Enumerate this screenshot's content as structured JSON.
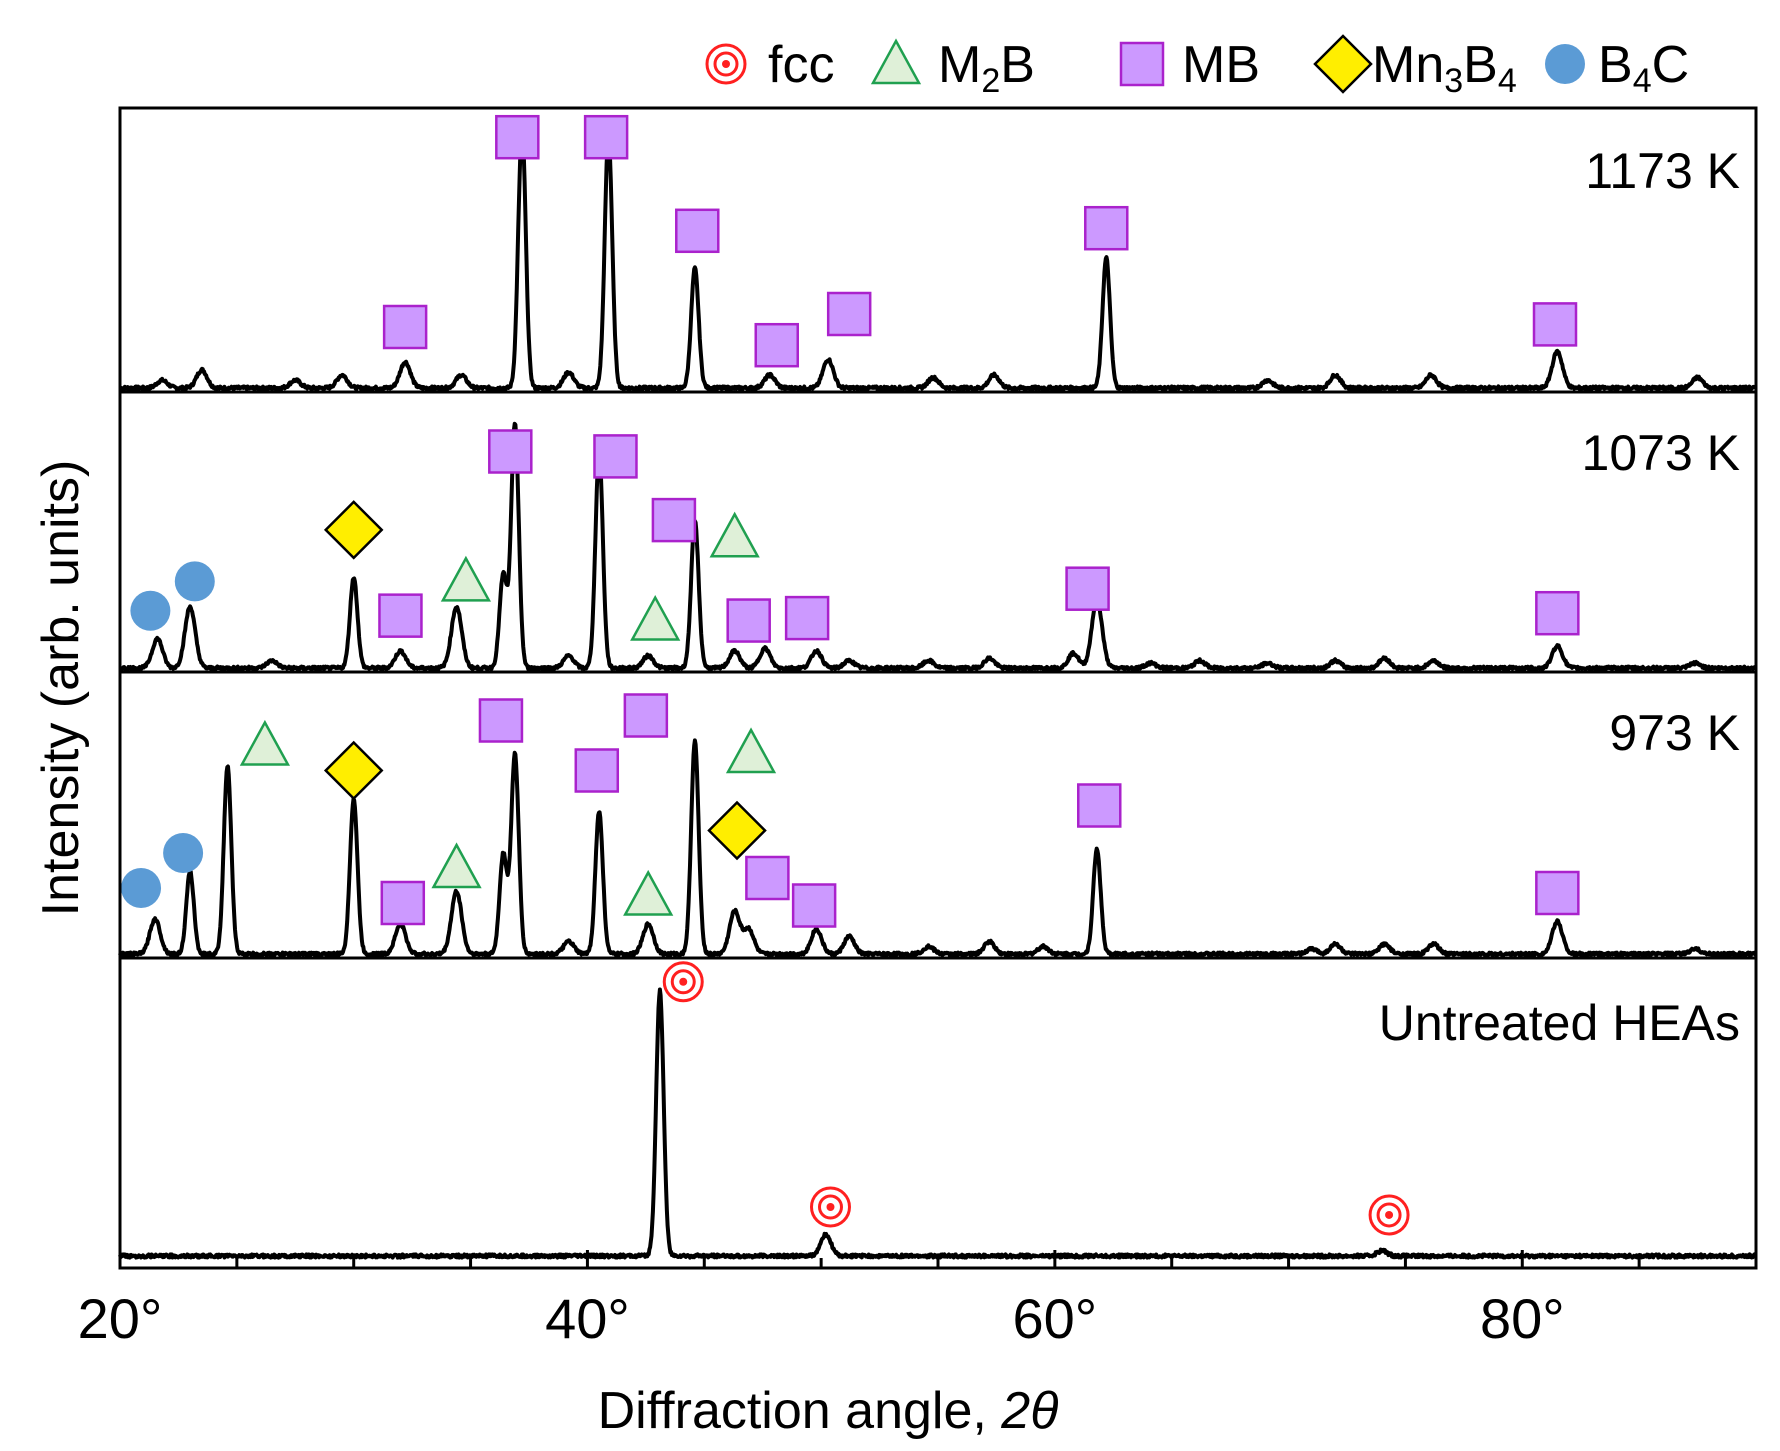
{
  "chart_data": {
    "type": "line",
    "title": "",
    "xlabel_main": "Diffraction angle, ",
    "xlabel_var": "2θ",
    "ylabel": "Intensity (arb. units)",
    "xlim": [
      20,
      90
    ],
    "x_ticks": [
      {
        "value": 20,
        "label": "20°"
      },
      {
        "value": 40,
        "label": "40°"
      },
      {
        "value": 60,
        "label": "60°"
      },
      {
        "value": 80,
        "label": "80°"
      }
    ],
    "grid": false,
    "legend_position": "top-right",
    "legend": [
      {
        "symbol": "fcc",
        "label": "fcc",
        "sub": "",
        "post": ""
      },
      {
        "symbol": "m2b",
        "label": "M",
        "sub": "2",
        "post": "B"
      },
      {
        "symbol": "mb",
        "label": "MB",
        "sub": "",
        "post": ""
      },
      {
        "symbol": "mn3b4",
        "label": "Mn",
        "sub": "3",
        "post": "B",
        "sub2": "4"
      },
      {
        "symbol": "b4c",
        "label": "B",
        "sub": "4",
        "post": "C"
      }
    ],
    "colors": {
      "fcc": "#ff2020",
      "m2b_stroke": "#20a050",
      "m2b_fill": "#dff0d8",
      "mb_fill": "#cc99ff",
      "mb_stroke": "#aa22cc",
      "mn3b4_fill": "#ffee00",
      "b4c_fill": "#5b9bd5",
      "line": "#000000"
    },
    "series": [
      {
        "name": "1173 K",
        "peaks": [
          [
            21.8,
            0.03
          ],
          [
            23.5,
            0.07
          ],
          [
            27.5,
            0.03
          ],
          [
            29.5,
            0.05
          ],
          [
            32.2,
            0.1
          ],
          [
            34.6,
            0.05
          ],
          [
            37.2,
            1.0
          ],
          [
            39.2,
            0.06
          ],
          [
            40.9,
            0.97
          ],
          [
            44.6,
            0.46
          ],
          [
            47.8,
            0.05
          ],
          [
            50.3,
            0.11
          ],
          [
            54.8,
            0.04
          ],
          [
            57.4,
            0.05
          ],
          [
            62.2,
            0.5
          ],
          [
            69.1,
            0.03
          ],
          [
            72.0,
            0.05
          ],
          [
            76.1,
            0.05
          ],
          [
            81.5,
            0.14
          ],
          [
            87.5,
            0.04
          ]
        ],
        "markers": [
          {
            "type": "mb",
            "x": 32.2,
            "y": 0.25
          },
          {
            "type": "mb",
            "x": 37.0,
            "y": 0.98
          },
          {
            "type": "mb",
            "x": 40.8,
            "y": 0.98
          },
          {
            "type": "mb",
            "x": 44.7,
            "y": 0.62
          },
          {
            "type": "mb",
            "x": 48.1,
            "y": 0.18
          },
          {
            "type": "mb",
            "x": 51.2,
            "y": 0.3
          },
          {
            "type": "mb",
            "x": 62.2,
            "y": 0.63
          },
          {
            "type": "mb",
            "x": 81.4,
            "y": 0.26
          }
        ]
      },
      {
        "name": "1073 K",
        "peaks": [
          [
            21.6,
            0.12
          ],
          [
            23.0,
            0.25
          ],
          [
            26.5,
            0.03
          ],
          [
            30.0,
            0.37
          ],
          [
            32.0,
            0.07
          ],
          [
            34.4,
            0.25
          ],
          [
            36.4,
            0.38
          ],
          [
            36.9,
            1.0
          ],
          [
            39.2,
            0.05
          ],
          [
            40.5,
            0.88
          ],
          [
            42.6,
            0.05
          ],
          [
            44.6,
            0.6
          ],
          [
            46.3,
            0.07
          ],
          [
            47.6,
            0.08
          ],
          [
            49.8,
            0.07
          ],
          [
            51.2,
            0.03
          ],
          [
            54.6,
            0.03
          ],
          [
            57.2,
            0.04
          ],
          [
            60.8,
            0.06
          ],
          [
            61.8,
            0.28
          ],
          [
            64.1,
            0.02
          ],
          [
            66.2,
            0.03
          ],
          [
            69.1,
            0.02
          ],
          [
            72.0,
            0.03
          ],
          [
            74.1,
            0.04
          ],
          [
            76.2,
            0.03
          ],
          [
            81.5,
            0.09
          ],
          [
            87.4,
            0.02
          ]
        ],
        "markers": [
          {
            "type": "b4c",
            "x": 21.3,
            "y": 0.25
          },
          {
            "type": "b4c",
            "x": 23.2,
            "y": 0.37
          },
          {
            "type": "mn3b4",
            "x": 30.0,
            "y": 0.58
          },
          {
            "type": "mb",
            "x": 32.0,
            "y": 0.23
          },
          {
            "type": "m2b",
            "x": 34.8,
            "y": 0.37
          },
          {
            "type": "mb",
            "x": 36.7,
            "y": 0.9
          },
          {
            "type": "mb",
            "x": 41.2,
            "y": 0.88
          },
          {
            "type": "m2b",
            "x": 42.9,
            "y": 0.21
          },
          {
            "type": "mb",
            "x": 43.7,
            "y": 0.62
          },
          {
            "type": "m2b",
            "x": 46.3,
            "y": 0.55
          },
          {
            "type": "mb",
            "x": 46.9,
            "y": 0.21
          },
          {
            "type": "mb",
            "x": 49.4,
            "y": 0.22
          },
          {
            "type": "mb",
            "x": 61.4,
            "y": 0.34
          },
          {
            "type": "mb",
            "x": 81.5,
            "y": 0.24
          }
        ]
      },
      {
        "name": "973 K",
        "peaks": [
          [
            21.5,
            0.14
          ],
          [
            23.0,
            0.33
          ],
          [
            24.6,
            0.75
          ],
          [
            30.0,
            0.62
          ],
          [
            32.0,
            0.12
          ],
          [
            34.4,
            0.25
          ],
          [
            36.4,
            0.4
          ],
          [
            36.9,
            0.8
          ],
          [
            39.2,
            0.05
          ],
          [
            40.5,
            0.57
          ],
          [
            42.6,
            0.12
          ],
          [
            44.6,
            0.85
          ],
          [
            46.3,
            0.17
          ],
          [
            46.9,
            0.1
          ],
          [
            49.8,
            0.1
          ],
          [
            51.2,
            0.07
          ],
          [
            54.6,
            0.03
          ],
          [
            57.2,
            0.05
          ],
          [
            59.5,
            0.03
          ],
          [
            61.8,
            0.42
          ],
          [
            71.0,
            0.02
          ],
          [
            72.0,
            0.04
          ],
          [
            74.1,
            0.04
          ],
          [
            76.2,
            0.04
          ],
          [
            81.5,
            0.13
          ],
          [
            87.4,
            0.02
          ]
        ],
        "markers": [
          {
            "type": "b4c",
            "x": 20.9,
            "y": 0.28
          },
          {
            "type": "b4c",
            "x": 22.7,
            "y": 0.42
          },
          {
            "type": "m2b",
            "x": 26.2,
            "y": 0.85
          },
          {
            "type": "mn3b4",
            "x": 30.0,
            "y": 0.75
          },
          {
            "type": "mb",
            "x": 32.1,
            "y": 0.22
          },
          {
            "type": "m2b",
            "x": 34.4,
            "y": 0.36
          },
          {
            "type": "mb",
            "x": 36.3,
            "y": 0.95
          },
          {
            "type": "mb",
            "x": 40.4,
            "y": 0.75
          },
          {
            "type": "mb",
            "x": 42.5,
            "y": 0.97
          },
          {
            "type": "m2b",
            "x": 42.6,
            "y": 0.25
          },
          {
            "type": "mn3b4",
            "x": 46.4,
            "y": 0.51
          },
          {
            "type": "m2b",
            "x": 47.0,
            "y": 0.82
          },
          {
            "type": "mb",
            "x": 47.7,
            "y": 0.32
          },
          {
            "type": "mb",
            "x": 49.7,
            "y": 0.21
          },
          {
            "type": "mb",
            "x": 61.9,
            "y": 0.61
          },
          {
            "type": "mb",
            "x": 81.5,
            "y": 0.26
          }
        ]
      },
      {
        "name": "Untreated HEAs",
        "peaks": [
          [
            43.1,
            1.0
          ],
          [
            50.2,
            0.08
          ],
          [
            74.0,
            0.02
          ]
        ],
        "markers": [
          {
            "type": "fcc",
            "x": 44.1,
            "y": 1.05
          },
          {
            "type": "fcc",
            "x": 50.4,
            "y": 0.2
          },
          {
            "type": "fcc",
            "x": 74.3,
            "y": 0.17
          }
        ]
      }
    ]
  }
}
